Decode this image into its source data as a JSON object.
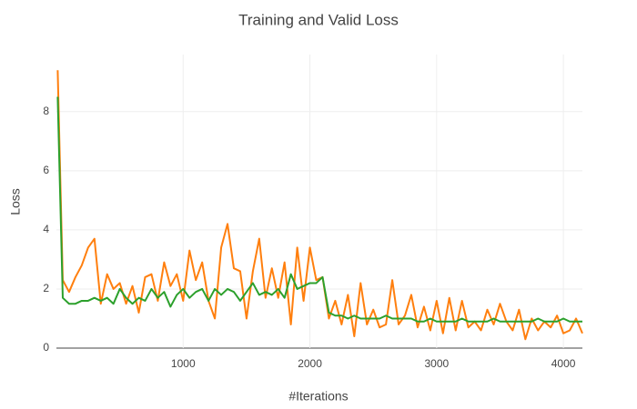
{
  "chart_data": {
    "type": "line",
    "title": "Training and Valid Loss",
    "x_label": "#Iterations",
    "y_label": "Loss",
    "x": [
      10,
      50,
      100,
      150,
      200,
      250,
      300,
      350,
      400,
      450,
      500,
      550,
      600,
      650,
      700,
      750,
      800,
      850,
      900,
      950,
      1000,
      1050,
      1100,
      1150,
      1200,
      1250,
      1300,
      1350,
      1400,
      1450,
      1500,
      1550,
      1600,
      1650,
      1700,
      1750,
      1800,
      1850,
      1900,
      1950,
      2000,
      2050,
      2100,
      2150,
      2200,
      2250,
      2300,
      2350,
      2400,
      2450,
      2500,
      2550,
      2600,
      2650,
      2700,
      2750,
      2800,
      2850,
      2900,
      2950,
      3000,
      3050,
      3100,
      3150,
      3200,
      3250,
      3300,
      3350,
      3400,
      3450,
      3500,
      3550,
      3600,
      3650,
      3700,
      3750,
      3800,
      3850,
      3900,
      3950,
      4000,
      4050,
      4100,
      4150
    ],
    "series": [
      {
        "color": "#ff7f0e",
        "values": [
          9.4,
          2.3,
          1.9,
          2.4,
          2.8,
          3.4,
          3.7,
          1.5,
          2.5,
          2.0,
          2.2,
          1.5,
          2.1,
          1.2,
          2.4,
          2.5,
          1.6,
          2.9,
          2.1,
          2.5,
          1.6,
          3.3,
          2.3,
          2.9,
          1.6,
          1.0,
          3.4,
          4.2,
          2.7,
          2.6,
          1.0,
          2.6,
          3.7,
          1.7,
          2.7,
          1.7,
          2.9,
          0.8,
          3.4,
          1.6,
          3.4,
          2.3,
          2.4,
          1.0,
          1.6,
          0.8,
          1.8,
          0.4,
          2.2,
          0.8,
          1.3,
          0.7,
          0.8,
          2.3,
          0.8,
          1.1,
          1.8,
          0.7,
          1.4,
          0.6,
          1.6,
          0.5,
          1.7,
          0.6,
          1.6,
          0.7,
          0.9,
          0.6,
          1.3,
          0.8,
          1.5,
          0.9,
          0.6,
          1.3,
          0.3,
          1.0,
          0.6,
          0.9,
          0.7,
          1.1,
          0.5,
          0.6,
          1.0,
          0.5
        ]
      },
      {
        "color": "#2ca02c",
        "values": [
          8.5,
          1.7,
          1.5,
          1.5,
          1.6,
          1.6,
          1.7,
          1.6,
          1.7,
          1.5,
          2.0,
          1.7,
          1.5,
          1.7,
          1.6,
          2.0,
          1.7,
          1.9,
          1.4,
          1.8,
          2.0,
          1.7,
          1.9,
          2.0,
          1.6,
          2.0,
          1.8,
          2.0,
          1.9,
          1.6,
          1.9,
          2.2,
          1.8,
          1.9,
          1.8,
          2.0,
          1.7,
          2.5,
          2.0,
          2.1,
          2.2,
          2.2,
          2.4,
          1.2,
          1.1,
          1.1,
          1.0,
          1.1,
          1.0,
          1.0,
          1.0,
          1.0,
          1.1,
          1.0,
          1.0,
          1.0,
          1.0,
          0.9,
          0.9,
          1.0,
          0.9,
          0.9,
          0.9,
          0.9,
          1.0,
          0.9,
          0.9,
          0.9,
          0.9,
          1.0,
          0.9,
          0.9,
          0.9,
          0.9,
          0.9,
          0.9,
          1.0,
          0.9,
          0.9,
          0.9,
          1.0,
          0.9,
          0.9,
          0.9
        ]
      }
    ],
    "xlim": [
      0,
      4150
    ],
    "ylim": [
      0,
      9.93
    ],
    "xticks": [
      1000,
      2000,
      3000,
      4000
    ],
    "yticks": [
      0,
      2,
      4,
      6,
      8
    ],
    "grid": true
  }
}
